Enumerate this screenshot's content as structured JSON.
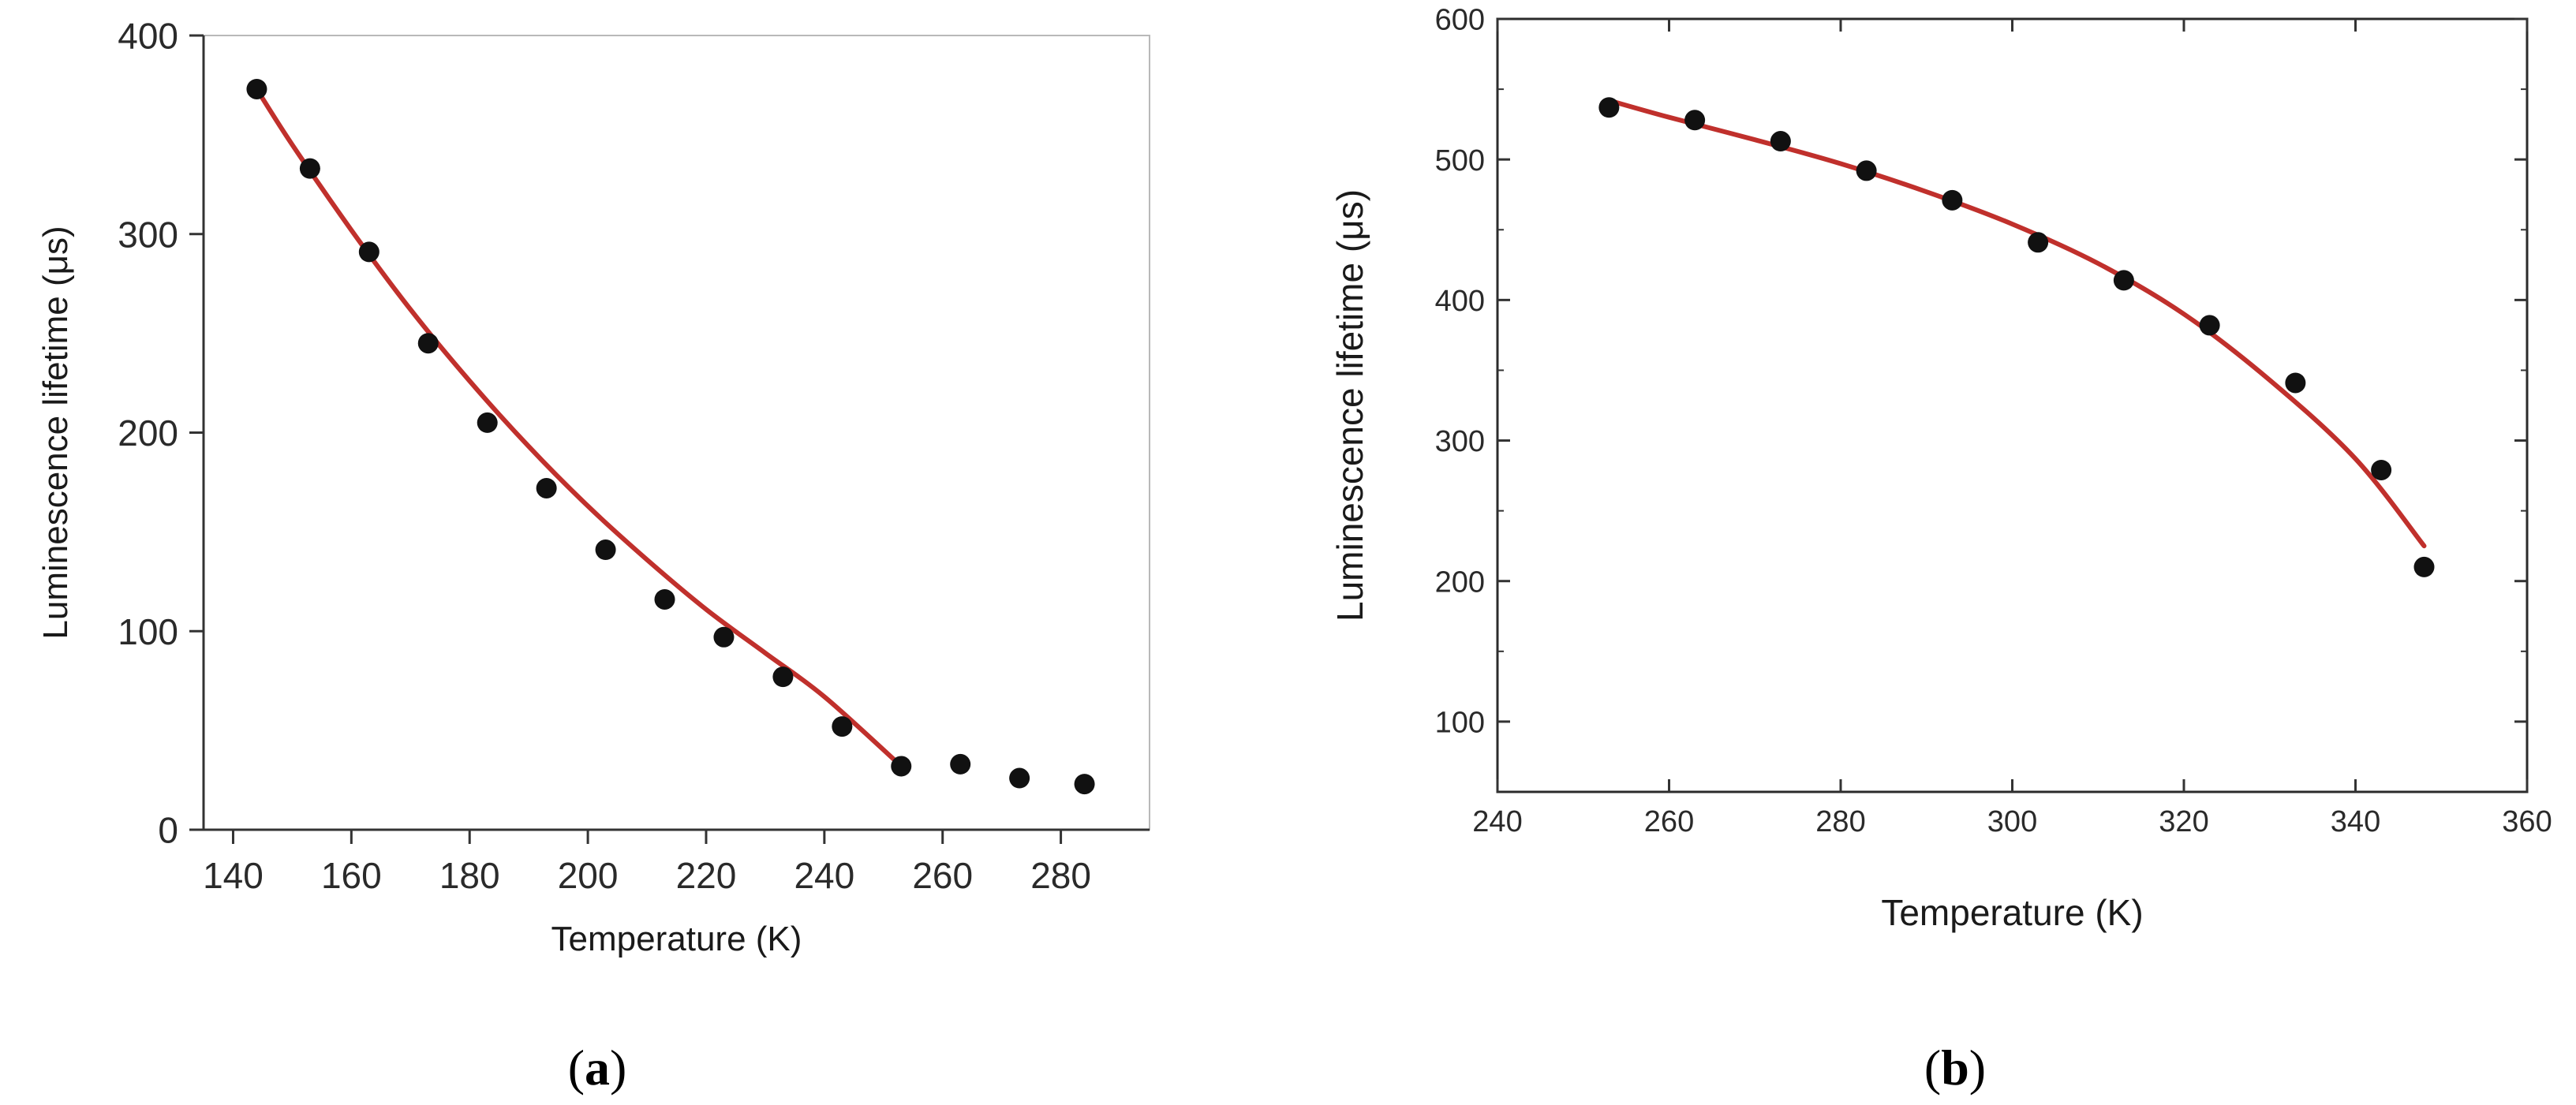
{
  "chart_data": [
    {
      "type": "scatter",
      "panel_label": "a",
      "xlabel": "Temperature (K)",
      "ylabel": "Luminescence lifetime (μs)",
      "xlim": [
        135,
        295
      ],
      "ylim": [
        0,
        400
      ],
      "x_ticks": [
        140,
        160,
        180,
        200,
        220,
        240,
        260,
        280
      ],
      "y_ticks": [
        0,
        100,
        200,
        300,
        400
      ],
      "grid": false,
      "series": [
        {
          "name": "measured",
          "marker": "filled-circle",
          "color": "#111111",
          "x": [
            144,
            153,
            163,
            173,
            183,
            193,
            203,
            213,
            223,
            233,
            243,
            253,
            263,
            273,
            284
          ],
          "y": [
            373,
            333,
            291,
            245,
            205,
            172,
            141,
            116,
            97,
            77,
            52,
            32,
            33,
            26,
            23
          ]
        },
        {
          "name": "fit",
          "line": "solid",
          "color": "#c0302c",
          "x": [
            144,
            150,
            160,
            170,
            180,
            190,
            200,
            210,
            220,
            230,
            240,
            253
          ],
          "y": [
            373,
            345,
            302,
            262,
            226,
            193,
            163,
            136,
            111,
            89,
            67,
            32
          ]
        }
      ]
    },
    {
      "type": "scatter",
      "panel_label": "b",
      "xlabel": "Temperature (K)",
      "ylabel": "Luminescence lifetime (μs)",
      "xlim": [
        240,
        360
      ],
      "ylim": [
        50,
        600
      ],
      "x_ticks": [
        240,
        260,
        280,
        300,
        320,
        340,
        360
      ],
      "y_ticks": [
        100,
        200,
        300,
        400,
        500,
        600
      ],
      "grid": false,
      "series": [
        {
          "name": "measured",
          "marker": "filled-circle",
          "color": "#111111",
          "x": [
            253,
            263,
            273,
            283,
            293,
            303,
            313,
            323,
            333,
            343,
            348
          ],
          "y": [
            537,
            528,
            513,
            492,
            471,
            441,
            414,
            382,
            341,
            279,
            210
          ]
        },
        {
          "name": "fit",
          "line": "solid",
          "color": "#c0302c",
          "x": [
            253,
            260,
            270,
            280,
            290,
            300,
            310,
            320,
            330,
            340,
            348
          ],
          "y": [
            542,
            530,
            514,
            497,
            477,
            454,
            426,
            390,
            343,
            287,
            225
          ]
        }
      ]
    }
  ]
}
